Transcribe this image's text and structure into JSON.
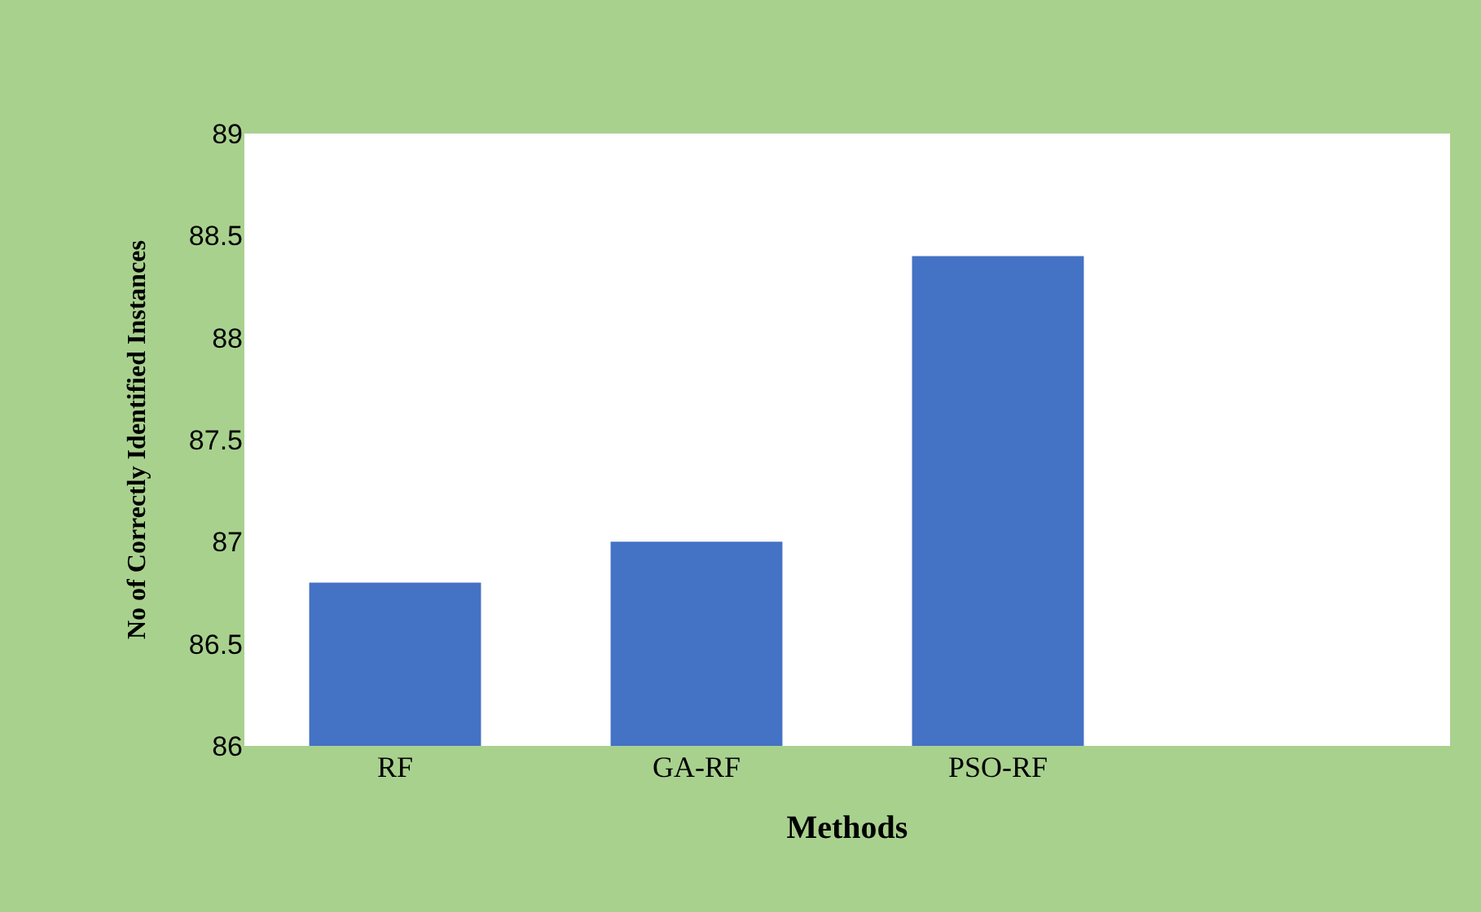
{
  "chart_data": {
    "type": "bar",
    "xlabel": "Methods",
    "ylabel": "No of Correctly Identified Instances",
    "categories": [
      "RF",
      "GA-RF",
      "PSO-RF",
      null
    ],
    "values": [
      86.8,
      87.0,
      88.4,
      null
    ],
    "color": "#4472c4",
    "ylim": [
      86,
      89
    ],
    "yticks": [
      86,
      86.5,
      87,
      87.5,
      88,
      88.5,
      89
    ]
  }
}
